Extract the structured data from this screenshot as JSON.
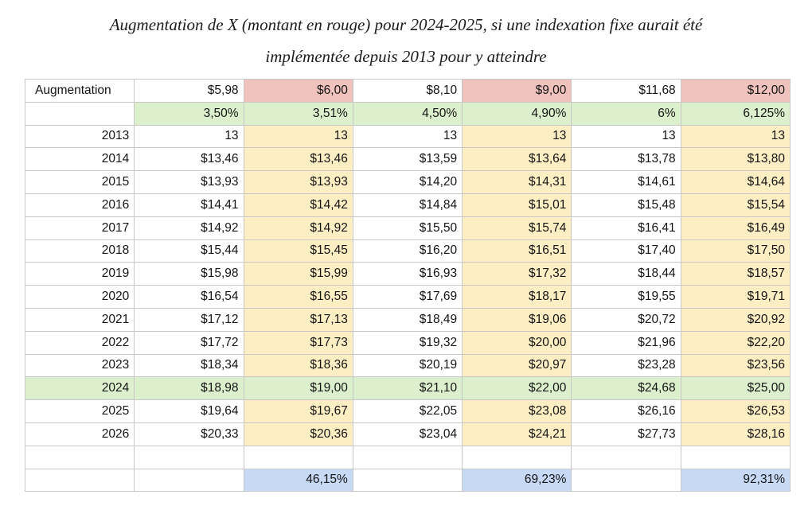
{
  "title": {
    "line1": "Augmentation de X (montant en rouge) pour 2024-2025, si une indexation fixe aurait été",
    "line2": "implémentée depuis 2013 pour y atteindre"
  },
  "colors": {
    "red": "#f0c2bd",
    "green": "#dcf0cd",
    "amber": "#fdeec3",
    "blue": "#c7d9f4",
    "grid_line": "#c7c7c7",
    "text": "#141414"
  },
  "table": {
    "rows": [
      {
        "name": "augmentation-header-row",
        "align_first": "left",
        "cells": [
          "Augmentation",
          "$5,98",
          "$6,00",
          "$8,10",
          "$9,00",
          "$11,68",
          "$12,00"
        ],
        "bg": [
          "",
          "",
          "red",
          "",
          "red",
          "",
          "red"
        ]
      },
      {
        "name": "rate-row",
        "cells": [
          "",
          "3,50%",
          "3,51%",
          "4,50%",
          "4,90%",
          "6%",
          "6,125%"
        ],
        "bg": [
          "",
          "green",
          "green",
          "green",
          "green",
          "green",
          "green"
        ]
      },
      {
        "name": "year-row-2013",
        "cells": [
          "2013",
          "13",
          "13",
          "13",
          "13",
          "13",
          "13"
        ],
        "bg": [
          "",
          "",
          "amber",
          "",
          "amber",
          "",
          "amber"
        ]
      },
      {
        "name": "year-row-2014",
        "cells": [
          "2014",
          "$13,46",
          "$13,46",
          "$13,59",
          "$13,64",
          "$13,78",
          "$13,80"
        ],
        "bg": [
          "",
          "",
          "amber",
          "",
          "amber",
          "",
          "amber"
        ]
      },
      {
        "name": "year-row-2015",
        "cells": [
          "2015",
          "$13,93",
          "$13,93",
          "$14,20",
          "$14,31",
          "$14,61",
          "$14,64"
        ],
        "bg": [
          "",
          "",
          "amber",
          "",
          "amber",
          "",
          "amber"
        ]
      },
      {
        "name": "year-row-2016",
        "cells": [
          "2016",
          "$14,41",
          "$14,42",
          "$14,84",
          "$15,01",
          "$15,48",
          "$15,54"
        ],
        "bg": [
          "",
          "",
          "amber",
          "",
          "amber",
          "",
          "amber"
        ]
      },
      {
        "name": "year-row-2017",
        "cells": [
          "2017",
          "$14,92",
          "$14,92",
          "$15,50",
          "$15,74",
          "$16,41",
          "$16,49"
        ],
        "bg": [
          "",
          "",
          "amber",
          "",
          "amber",
          "",
          "amber"
        ]
      },
      {
        "name": "year-row-2018",
        "cells": [
          "2018",
          "$15,44",
          "$15,45",
          "$16,20",
          "$16,51",
          "$17,40",
          "$17,50"
        ],
        "bg": [
          "",
          "",
          "amber",
          "",
          "amber",
          "",
          "amber"
        ]
      },
      {
        "name": "year-row-2019",
        "cells": [
          "2019",
          "$15,98",
          "$15,99",
          "$16,93",
          "$17,32",
          "$18,44",
          "$18,57"
        ],
        "bg": [
          "",
          "",
          "amber",
          "",
          "amber",
          "",
          "amber"
        ]
      },
      {
        "name": "year-row-2020",
        "cells": [
          "2020",
          "$16,54",
          "$16,55",
          "$17,69",
          "$18,17",
          "$19,55",
          "$19,71"
        ],
        "bg": [
          "",
          "",
          "amber",
          "",
          "amber",
          "",
          "amber"
        ]
      },
      {
        "name": "year-row-2021",
        "cells": [
          "2021",
          "$17,12",
          "$17,13",
          "$18,49",
          "$19,06",
          "$20,72",
          "$20,92"
        ],
        "bg": [
          "",
          "",
          "amber",
          "",
          "amber",
          "",
          "amber"
        ]
      },
      {
        "name": "year-row-2022",
        "cells": [
          "2022",
          "$17,72",
          "$17,73",
          "$19,32",
          "$20,00",
          "$21,96",
          "$22,20"
        ],
        "bg": [
          "",
          "",
          "amber",
          "",
          "amber",
          "",
          "amber"
        ]
      },
      {
        "name": "year-row-2023",
        "cells": [
          "2023",
          "$18,34",
          "$18,36",
          "$20,19",
          "$20,97",
          "$23,28",
          "$23,56"
        ],
        "bg": [
          "",
          "",
          "amber",
          "",
          "amber",
          "",
          "amber"
        ]
      },
      {
        "name": "year-row-2024",
        "cells": [
          "2024",
          "$18,98",
          "$19,00",
          "$21,10",
          "$22,00",
          "$24,68",
          "$25,00"
        ],
        "bg": [
          "green",
          "green",
          "green",
          "green",
          "green",
          "green",
          "green"
        ]
      },
      {
        "name": "year-row-2025",
        "cells": [
          "2025",
          "$19,64",
          "$19,67",
          "$22,05",
          "$23,08",
          "$26,16",
          "$26,53"
        ],
        "bg": [
          "",
          "",
          "amber",
          "",
          "amber",
          "",
          "amber"
        ]
      },
      {
        "name": "year-row-2026",
        "cells": [
          "2026",
          "$20,33",
          "$20,36",
          "$23,04",
          "$24,21",
          "$27,73",
          "$28,16"
        ],
        "bg": [
          "",
          "",
          "amber",
          "",
          "amber",
          "",
          "amber"
        ]
      },
      {
        "name": "spacer-row",
        "cells": [
          "",
          "",
          "",
          "",
          "",
          "",
          ""
        ],
        "bg": [
          "",
          "",
          "",
          "",
          "",
          "",
          ""
        ]
      },
      {
        "name": "cumulative-row",
        "cells": [
          "",
          "",
          "46,15%",
          "",
          "69,23%",
          "",
          "92,31%"
        ],
        "bg": [
          "",
          "",
          "blue",
          "",
          "blue",
          "",
          "blue"
        ]
      }
    ]
  }
}
